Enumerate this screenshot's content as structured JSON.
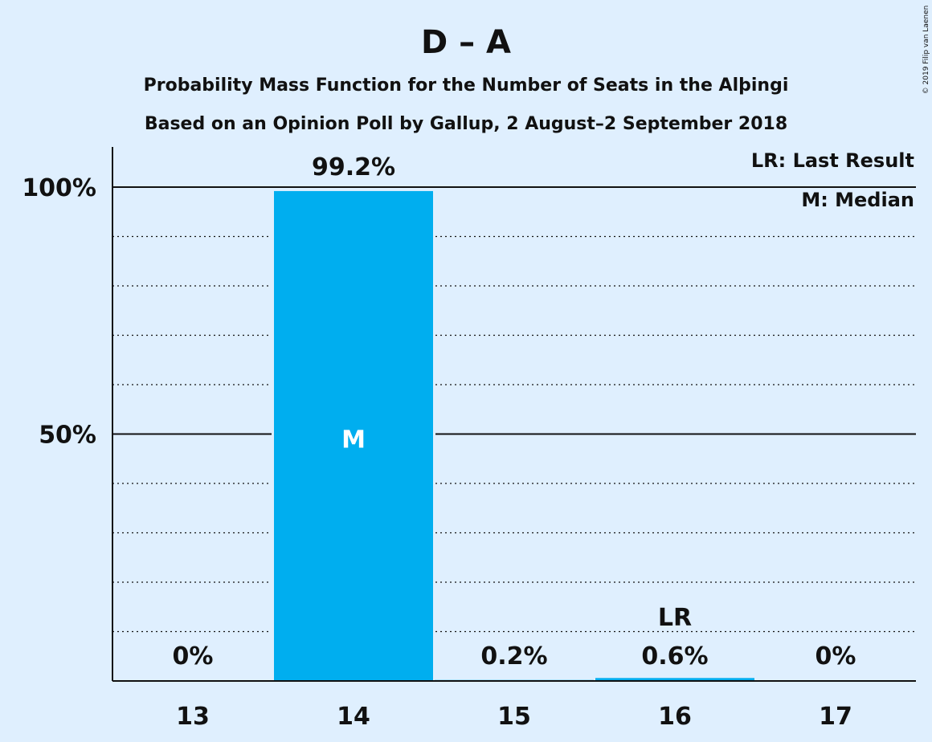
{
  "chart_data": {
    "type": "bar",
    "title": "D – A",
    "subtitle_lines": [
      "Probability Mass Function for the Number of Seats in the Alþingi",
      "Based on an Opinion Poll by Gallup, 2 August–2 September 2018"
    ],
    "categories": [
      "13",
      "14",
      "15",
      "16",
      "17"
    ],
    "values": [
      0,
      99.2,
      0.2,
      0.6,
      0
    ],
    "value_labels": [
      "0%",
      "99.2%",
      "0.2%",
      "0.6%",
      "0%"
    ],
    "ylim": [
      0,
      100
    ],
    "yticks": [
      {
        "value": 100,
        "label": "100%"
      },
      {
        "value": 50,
        "label": "50%"
      }
    ],
    "grid_minor_step": 10,
    "markers": {
      "median_category": "14",
      "median_label": "M",
      "last_result_category": "16",
      "last_result_label": "LR"
    },
    "legend": [
      "LR: Last Result",
      "M: Median"
    ],
    "legend_position": "top-right",
    "copyright": "© 2019 Filip van Laenen",
    "colors": {
      "bar": "#00aeef",
      "background": "#dfeffe",
      "text": "#111111"
    }
  }
}
